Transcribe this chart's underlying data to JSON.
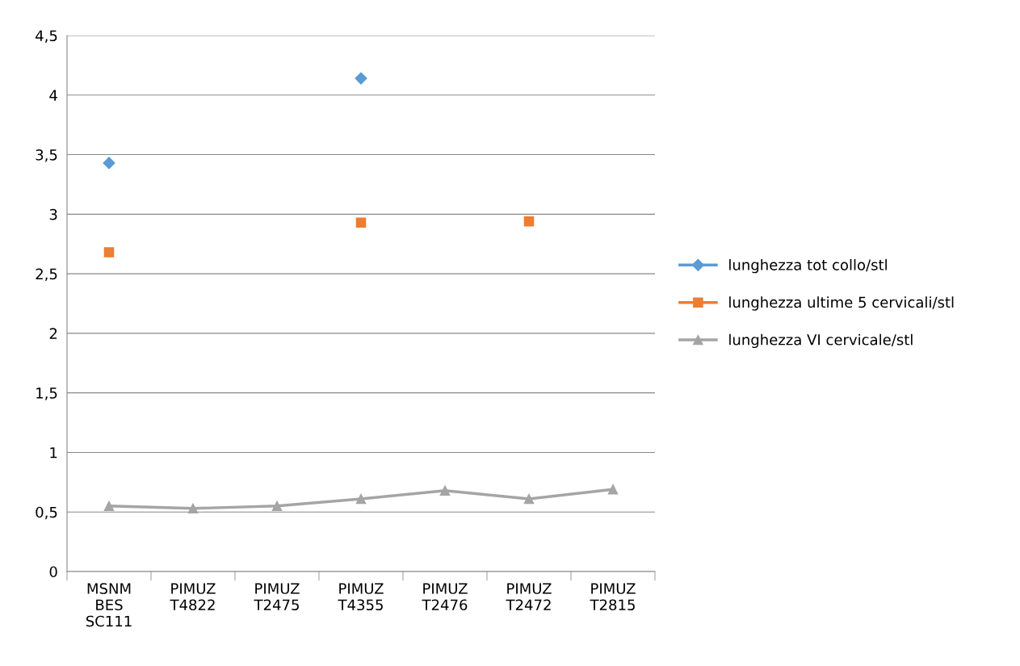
{
  "chart_data": {
    "type": "line",
    "categories": [
      "MSNM BES SC111",
      "PIMUZ T4822",
      "PIMUZ T2475",
      "PIMUZ T4355",
      "PIMUZ T2476",
      "PIMUZ T2472",
      "PIMUZ T2815"
    ],
    "series": [
      {
        "name": "lunghezza tot collo/stl",
        "type": "scatter",
        "color": "#5b9bd5",
        "marker": "diamond",
        "values": [
          3.43,
          null,
          null,
          4.14,
          null,
          null,
          null
        ]
      },
      {
        "name": "lunghezza ultime 5 cervicali/stl",
        "type": "scatter",
        "color": "#ed7d31",
        "marker": "square",
        "values": [
          2.68,
          null,
          null,
          2.93,
          null,
          2.94,
          null
        ]
      },
      {
        "name": "lunghezza VI cervicale/stl",
        "color": "#a5a5a5",
        "marker": "triangle",
        "values": [
          0.55,
          0.53,
          0.55,
          0.61,
          0.68,
          0.61,
          0.69
        ]
      }
    ],
    "ylim": [
      0,
      4.5
    ],
    "yticks": [
      0,
      {
        "value": 0.5,
        "label": "0,5"
      },
      1,
      {
        "value": 1.5,
        "label": "1,5"
      },
      2,
      {
        "value": 2.5,
        "label": "2,5"
      },
      3,
      {
        "value": 3.5,
        "label": "3,5"
      },
      4,
      {
        "value": 4.5,
        "label": "4,5"
      }
    ],
    "grid": "y",
    "legend": "right",
    "line_style": "solid"
  }
}
